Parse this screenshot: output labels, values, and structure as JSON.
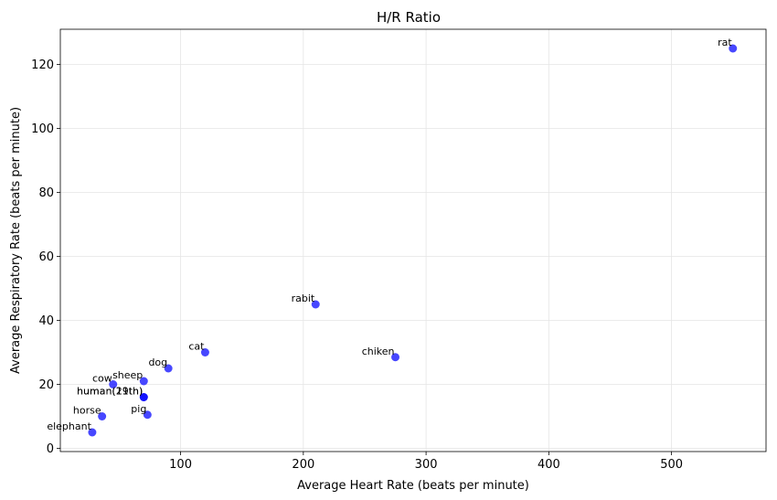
{
  "chart_data": {
    "type": "scatter",
    "title": "H/R Ratio",
    "xlabel": "Average Heart Rate (beats per minute)",
    "ylabel": "Average Respiratory Rate (beats per minute)",
    "xlim": [
      2,
      577
    ],
    "ylim": [
      -1,
      131
    ],
    "xticks": [
      100,
      200,
      300,
      400,
      500
    ],
    "yticks": [
      0,
      20,
      40,
      60,
      80,
      100,
      120
    ],
    "grid": true,
    "marker_color": "#0000ff",
    "points": [
      {
        "label": "elephant",
        "x": 28,
        "y": 5
      },
      {
        "label": "horse",
        "x": 36,
        "y": 10
      },
      {
        "label": "cow",
        "x": 45,
        "y": 20
      },
      {
        "label": "sheep",
        "x": 70,
        "y": 21
      },
      {
        "label": "human(19th)",
        "x": 70,
        "y": 16
      },
      {
        "label": "human(21th)",
        "x": 70,
        "y": 16
      },
      {
        "label": "pig",
        "x": 73,
        "y": 10.5
      },
      {
        "label": "dog",
        "x": 90,
        "y": 25
      },
      {
        "label": "cat",
        "x": 120,
        "y": 30
      },
      {
        "label": "rabit",
        "x": 210,
        "y": 45
      },
      {
        "label": "chiken",
        "x": 275,
        "y": 28.5
      },
      {
        "label": "rat",
        "x": 550,
        "y": 125
      }
    ]
  }
}
